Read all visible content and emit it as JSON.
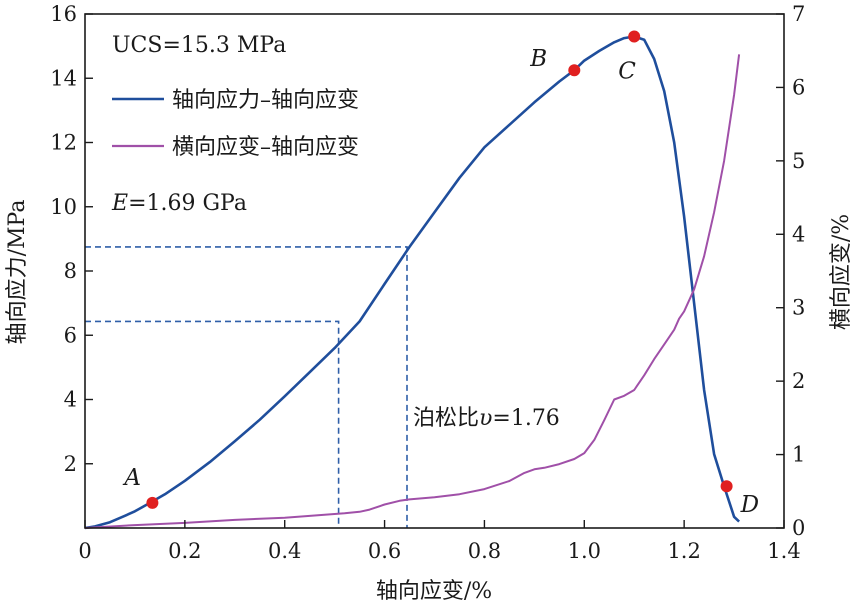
{
  "chart_data": {
    "type": "line",
    "xlabel": "轴向应变/%",
    "ylabel_left": "轴向应力/MPa",
    "ylabel_right": "横向应变/%",
    "xlim": [
      0,
      1.4
    ],
    "ylim_left": [
      0,
      16
    ],
    "ylim_right": [
      0,
      7
    ],
    "x_ticks": [
      "0",
      "0.2",
      "0.4",
      "0.6",
      "0.8",
      "1.0",
      "1.2",
      "1.4"
    ],
    "y_left_ticks": [
      "2",
      "4",
      "6",
      "8",
      "10",
      "12",
      "14",
      "16"
    ],
    "y_right_ticks": [
      "0",
      "1",
      "2",
      "3",
      "4",
      "5",
      "6",
      "7"
    ],
    "grid": false,
    "legend_placement": "top-left",
    "annotations": {
      "ucs": "UCS=15.3 MPa",
      "modulus_symbol": "E",
      "modulus_value": "=1.69 GPa",
      "poisson_prefix": "泊松比",
      "poisson_symbol": "υ",
      "poisson_value": "=1.76"
    },
    "series": [
      {
        "name": "轴向应力–轴向应变",
        "axis": "left",
        "color": "#1f4e9c",
        "x": [
          0,
          0.02,
          0.05,
          0.08,
          0.1,
          0.13,
          0.16,
          0.2,
          0.25,
          0.3,
          0.35,
          0.4,
          0.45,
          0.5,
          0.55,
          0.6,
          0.65,
          0.7,
          0.75,
          0.8,
          0.85,
          0.9,
          0.95,
          0.98,
          1.0,
          1.03,
          1.06,
          1.08,
          1.1,
          1.12,
          1.14,
          1.16,
          1.18,
          1.2,
          1.22,
          1.24,
          1.26,
          1.28,
          1.3,
          1.31
        ],
        "y": [
          0,
          0.05,
          0.18,
          0.38,
          0.52,
          0.78,
          1.05,
          1.47,
          2.05,
          2.7,
          3.37,
          4.1,
          4.85,
          5.6,
          6.43,
          7.6,
          8.75,
          9.83,
          10.9,
          11.85,
          12.55,
          13.25,
          13.9,
          14.25,
          14.55,
          14.85,
          15.12,
          15.25,
          15.3,
          15.2,
          14.6,
          13.6,
          12.0,
          9.7,
          7.0,
          4.3,
          2.3,
          1.3,
          0.35,
          0.2
        ]
      },
      {
        "name": "横向应变–轴向应变",
        "axis": "right",
        "color": "#a050a8",
        "x": [
          0,
          0.1,
          0.2,
          0.3,
          0.4,
          0.5,
          0.52,
          0.55,
          0.57,
          0.6,
          0.63,
          0.65,
          0.7,
          0.75,
          0.8,
          0.85,
          0.88,
          0.9,
          0.92,
          0.95,
          0.98,
          1.0,
          1.02,
          1.04,
          1.06,
          1.08,
          1.1,
          1.12,
          1.14,
          1.16,
          1.18,
          1.19,
          1.2,
          1.22,
          1.24,
          1.26,
          1.28,
          1.3,
          1.31
        ],
        "y": [
          0,
          0.04,
          0.07,
          0.11,
          0.14,
          0.19,
          0.2,
          0.22,
          0.25,
          0.32,
          0.37,
          0.39,
          0.42,
          0.46,
          0.53,
          0.64,
          0.75,
          0.8,
          0.82,
          0.87,
          0.94,
          1.02,
          1.2,
          1.47,
          1.75,
          1.8,
          1.88,
          2.08,
          2.3,
          2.5,
          2.7,
          2.85,
          2.95,
          3.25,
          3.7,
          4.3,
          5.0,
          5.9,
          6.45
        ]
      }
    ],
    "key_points": [
      {
        "label": "A",
        "x": 0.135,
        "y": 0.78
      },
      {
        "label": "B",
        "x": 0.98,
        "y": 14.25
      },
      {
        "label": "C",
        "x": 1.1,
        "y": 15.3
      },
      {
        "label": "D",
        "x": 1.285,
        "y": 1.3
      }
    ],
    "reference_lines": [
      {
        "x": 0.508,
        "y": 6.43
      },
      {
        "x": 0.645,
        "y": 8.75
      }
    ],
    "point_color": "#e02020"
  }
}
